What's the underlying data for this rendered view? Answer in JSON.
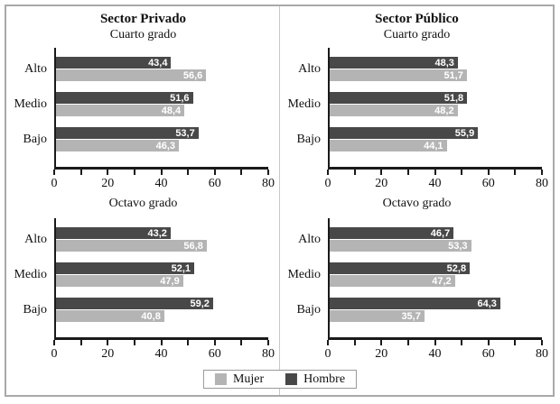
{
  "figure": {
    "background": "#ffffff",
    "frame_color": "#a9a9a9",
    "divider_color": "#c9c9c9",
    "axis_color": "#1a1a1a",
    "bar_label_color": "#ffffff"
  },
  "legend": {
    "items": [
      {
        "label": "Mujer",
        "color": "#b4b4b4"
      },
      {
        "label": "Hombre",
        "color": "#484848"
      }
    ]
  },
  "chart_data": [
    {
      "type": "bar",
      "orientation": "horizontal",
      "title": "Sector Privado",
      "subtitle": "Cuarto grado",
      "categories": [
        "Alto",
        "Medio",
        "Bajo"
      ],
      "series": [
        {
          "name": "Hombre",
          "color": "#484848",
          "values": [
            43.4,
            51.6,
            53.7
          ]
        },
        {
          "name": "Mujer",
          "color": "#b4b4b4",
          "values": [
            56.6,
            48.4,
            46.3
          ]
        }
      ],
      "xlim": [
        0,
        80
      ],
      "xticks": [
        0,
        20,
        40,
        60,
        80
      ],
      "minor_tick_every": 10,
      "decimal_separator": ",",
      "grid": false,
      "legend_position": "bottom-center-shared"
    },
    {
      "type": "bar",
      "orientation": "horizontal",
      "title": "Sector Público",
      "subtitle": "Cuarto grado",
      "categories": [
        "Alto",
        "Medio",
        "Bajo"
      ],
      "series": [
        {
          "name": "Hombre",
          "color": "#484848",
          "values": [
            48.3,
            51.8,
            55.9
          ]
        },
        {
          "name": "Mujer",
          "color": "#b4b4b4",
          "values": [
            51.7,
            48.2,
            44.1
          ]
        }
      ],
      "xlim": [
        0,
        80
      ],
      "xticks": [
        0,
        20,
        40,
        60,
        80
      ],
      "minor_tick_every": 10,
      "decimal_separator": ",",
      "grid": false,
      "legend_position": "bottom-center-shared"
    },
    {
      "type": "bar",
      "orientation": "horizontal",
      "title": "",
      "subtitle": "Octavo grado",
      "categories": [
        "Alto",
        "Medio",
        "Bajo"
      ],
      "series": [
        {
          "name": "Hombre",
          "color": "#484848",
          "values": [
            43.2,
            52.1,
            59.2
          ]
        },
        {
          "name": "Mujer",
          "color": "#b4b4b4",
          "values": [
            56.8,
            47.9,
            40.8
          ]
        }
      ],
      "xlim": [
        0,
        80
      ],
      "xticks": [
        0,
        20,
        40,
        60,
        80
      ],
      "minor_tick_every": 10,
      "decimal_separator": ",",
      "grid": false,
      "legend_position": "bottom-center-shared"
    },
    {
      "type": "bar",
      "orientation": "horizontal",
      "title": "",
      "subtitle": "Octavo grado",
      "categories": [
        "Alto",
        "Medio",
        "Bajo"
      ],
      "series": [
        {
          "name": "Hombre",
          "color": "#484848",
          "values": [
            46.7,
            52.8,
            64.3
          ]
        },
        {
          "name": "Mujer",
          "color": "#b4b4b4",
          "values": [
            53.3,
            47.2,
            35.7
          ]
        }
      ],
      "xlim": [
        0,
        80
      ],
      "xticks": [
        0,
        20,
        40,
        60,
        80
      ],
      "minor_tick_every": 10,
      "decimal_separator": ",",
      "grid": false,
      "legend_position": "bottom-center-shared"
    }
  ]
}
